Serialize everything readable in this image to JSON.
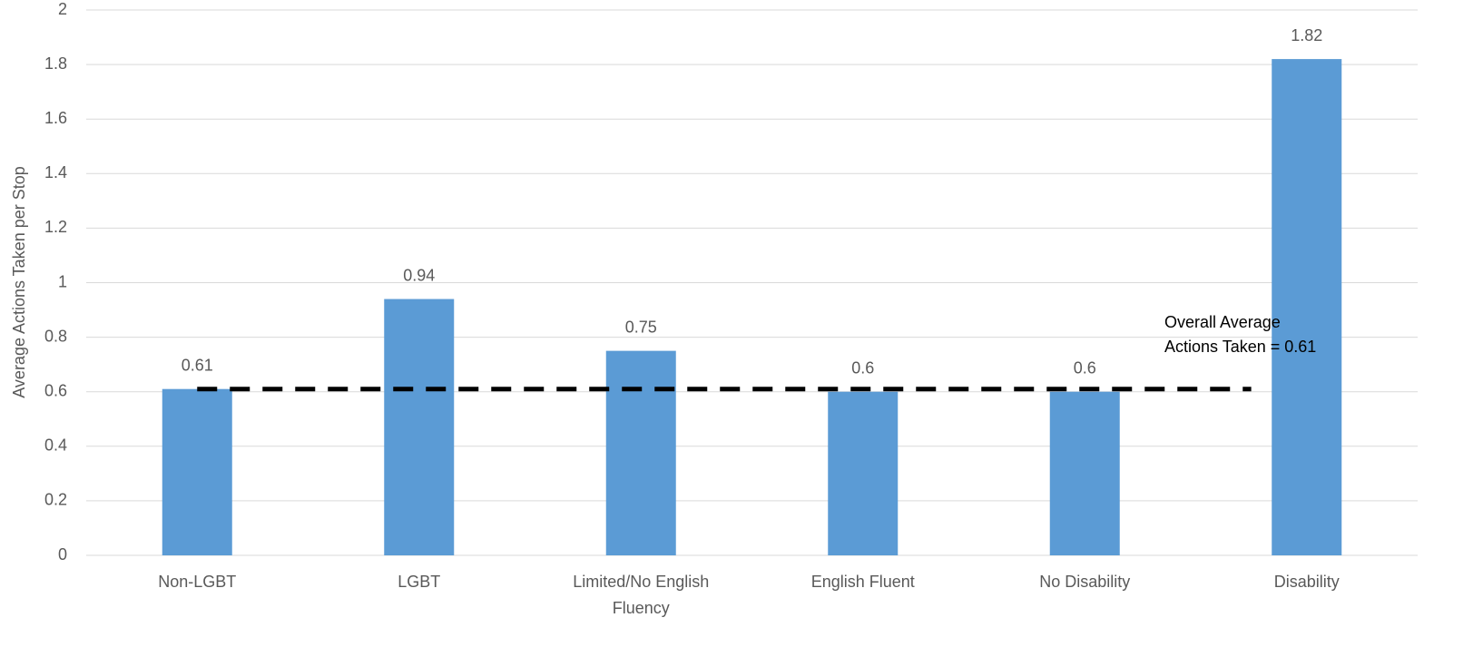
{
  "chart_data": {
    "type": "bar",
    "y_label": "Average Actions Taken per Stop",
    "categories": [
      "Non-LGBT",
      "LGBT",
      "Limited/No English Fluency",
      "English Fluent",
      "No Disability",
      "Disability"
    ],
    "values": [
      0.61,
      0.94,
      0.75,
      0.6,
      0.6,
      1.82
    ],
    "color": "#5b9bd5",
    "ylim": [
      0,
      2
    ],
    "yticks": [
      0,
      0.2,
      0.4,
      0.6,
      0.8,
      1,
      1.2,
      1.4,
      1.6,
      1.8,
      2
    ],
    "grid": true,
    "reference_line": {
      "value": 0.61,
      "style": "dashed",
      "color": "#000000"
    },
    "annotation": [
      "Overall Average",
      "Actions Taken = 0.61"
    ]
  }
}
